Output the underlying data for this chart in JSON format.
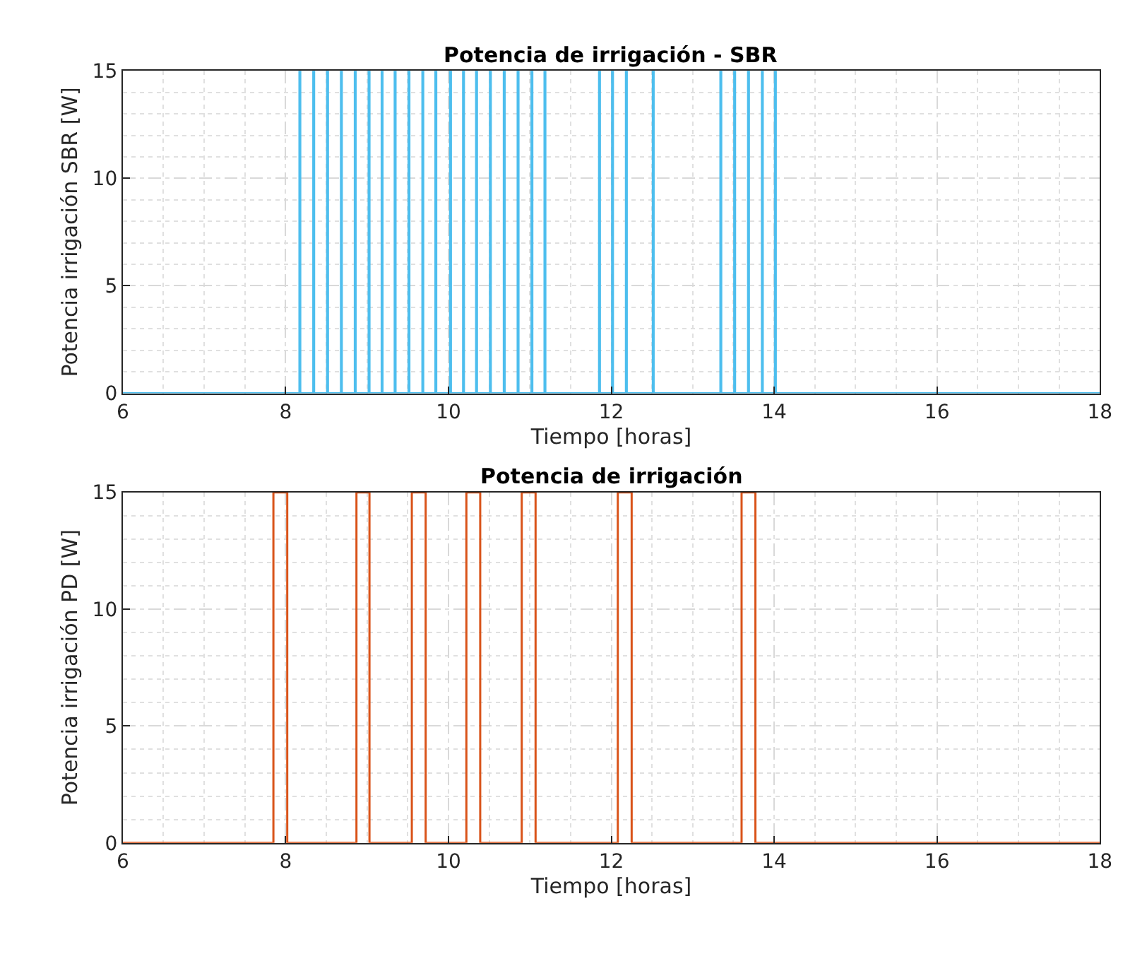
{
  "chart_data": [
    {
      "type": "step",
      "title": "Potencia de irrigación - SBR",
      "xlabel": "Tiempo [horas]",
      "ylabel": "Potencia irrigación SBR [W]",
      "xlim": [
        6,
        18
      ],
      "xticks": [
        6,
        8,
        10,
        12,
        14,
        16,
        18
      ],
      "ylim": [
        0,
        15
      ],
      "yticks": [
        0,
        5,
        10,
        15
      ],
      "grid": true,
      "marker": "none",
      "line_style": "solid",
      "series": [
        {
          "color": "#4dbeee",
          "x": [
            6,
            8.17,
            8.18,
            8.34,
            8.35,
            8.51,
            8.52,
            8.68,
            8.69,
            8.85,
            8.86,
            9.02,
            9.03,
            9.18,
            9.19,
            9.34,
            9.35,
            9.51,
            9.52,
            9.68,
            9.69,
            9.84,
            9.85,
            10.02,
            10.03,
            10.18,
            10.19,
            10.34,
            10.35,
            10.51,
            10.52,
            10.68,
            10.69,
            10.85,
            10.86,
            11.02,
            11.03,
            11.18,
            11.19,
            11.85,
            11.86,
            12.01,
            12.02,
            12.18,
            12.19,
            12.51,
            12.52,
            13.34,
            13.35,
            13.51,
            13.52,
            13.68,
            13.69,
            13.85,
            13.86,
            14.01,
            14.02,
            18
          ],
          "values": [
            0,
            15,
            0,
            15,
            0,
            15,
            0,
            15,
            0,
            15,
            0,
            15,
            0,
            15,
            0,
            15,
            0,
            15,
            0,
            15,
            0,
            15,
            0,
            15,
            0,
            15,
            0,
            15,
            0,
            15,
            0,
            15,
            0,
            15,
            0,
            15,
            0,
            15,
            0,
            15,
            0,
            15,
            0,
            15,
            0,
            15,
            0,
            15,
            0,
            15,
            0,
            15,
            0,
            15,
            0,
            15,
            0,
            0
          ]
        }
      ]
    },
    {
      "type": "step",
      "title": "Potencia de irrigación",
      "xlabel": "Tiempo [horas]",
      "ylabel": "Potencia irrigación PD [W]",
      "xlim": [
        6,
        18
      ],
      "xticks": [
        6,
        8,
        10,
        12,
        14,
        16,
        18
      ],
      "ylim": [
        0,
        15
      ],
      "yticks": [
        0,
        5,
        10,
        15
      ],
      "grid": true,
      "marker": "none",
      "line_style": "solid",
      "series": [
        {
          "color": "#d95319",
          "x": [
            6,
            7.85,
            8.02,
            8.87,
            9.03,
            9.55,
            9.72,
            10.22,
            10.39,
            10.9,
            11.07,
            12.08,
            12.25,
            13.6,
            13.77,
            18
          ],
          "values": [
            0,
            15,
            0,
            15,
            0,
            15,
            0,
            15,
            0,
            15,
            0,
            15,
            0,
            15,
            0,
            0
          ]
        }
      ]
    }
  ]
}
